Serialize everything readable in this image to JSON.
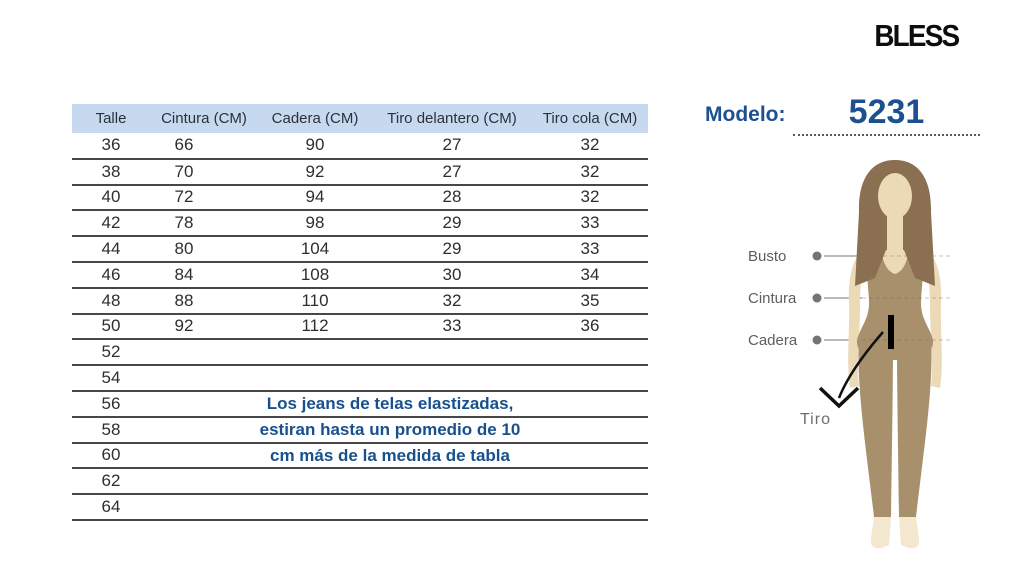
{
  "brand": {
    "logo_text": "BLESS"
  },
  "model": {
    "label": "Modelo:",
    "value": "5231"
  },
  "size_table": {
    "headers": [
      "Talle",
      "Cintura (CM)",
      "Cadera (CM)",
      "Tiro delantero (CM)",
      "Tiro cola (CM)"
    ],
    "rows": [
      [
        "36",
        "66",
        "90",
        "27",
        "32"
      ],
      [
        "38",
        "70",
        "92",
        "27",
        "32"
      ],
      [
        "40",
        "72",
        "94",
        "28",
        "32"
      ],
      [
        "42",
        "78",
        "98",
        "29",
        "33"
      ],
      [
        "44",
        "80",
        "104",
        "29",
        "33"
      ],
      [
        "46",
        "84",
        "108",
        "30",
        "34"
      ],
      [
        "48",
        "88",
        "110",
        "32",
        "35"
      ],
      [
        "50",
        "92",
        "112",
        "33",
        "36"
      ],
      [
        "52",
        "",
        "",
        "",
        ""
      ],
      [
        "54",
        "",
        "",
        "",
        ""
      ],
      [
        "56",
        "",
        "",
        "",
        ""
      ],
      [
        "58",
        "",
        "",
        "",
        ""
      ],
      [
        "60",
        "",
        "",
        "",
        ""
      ],
      [
        "62",
        "",
        "",
        "",
        ""
      ],
      [
        "64",
        "",
        "",
        "",
        ""
      ]
    ],
    "note_lines": [
      "Los jeans de telas elastizadas,",
      "estiran hasta un promedio de 10",
      "cm más de la medida de tabla"
    ]
  },
  "figure": {
    "bust_label": "Busto",
    "waist_label": "Cintura",
    "hip_label": "Cadera",
    "rise_label": "Tiro"
  },
  "colors": {
    "header_bg": "#c7d9ee",
    "table_line": "#474747",
    "note_text": "#17508c",
    "model_text": "#1d5091",
    "logo_text": "#0d0d0d",
    "figure_label_gray": "#5e5e5e",
    "skin": "#ecd9b6",
    "feet_skin": "#f3e8cf",
    "hair": "#8a7051",
    "bodysuit": "#a8906c"
  }
}
